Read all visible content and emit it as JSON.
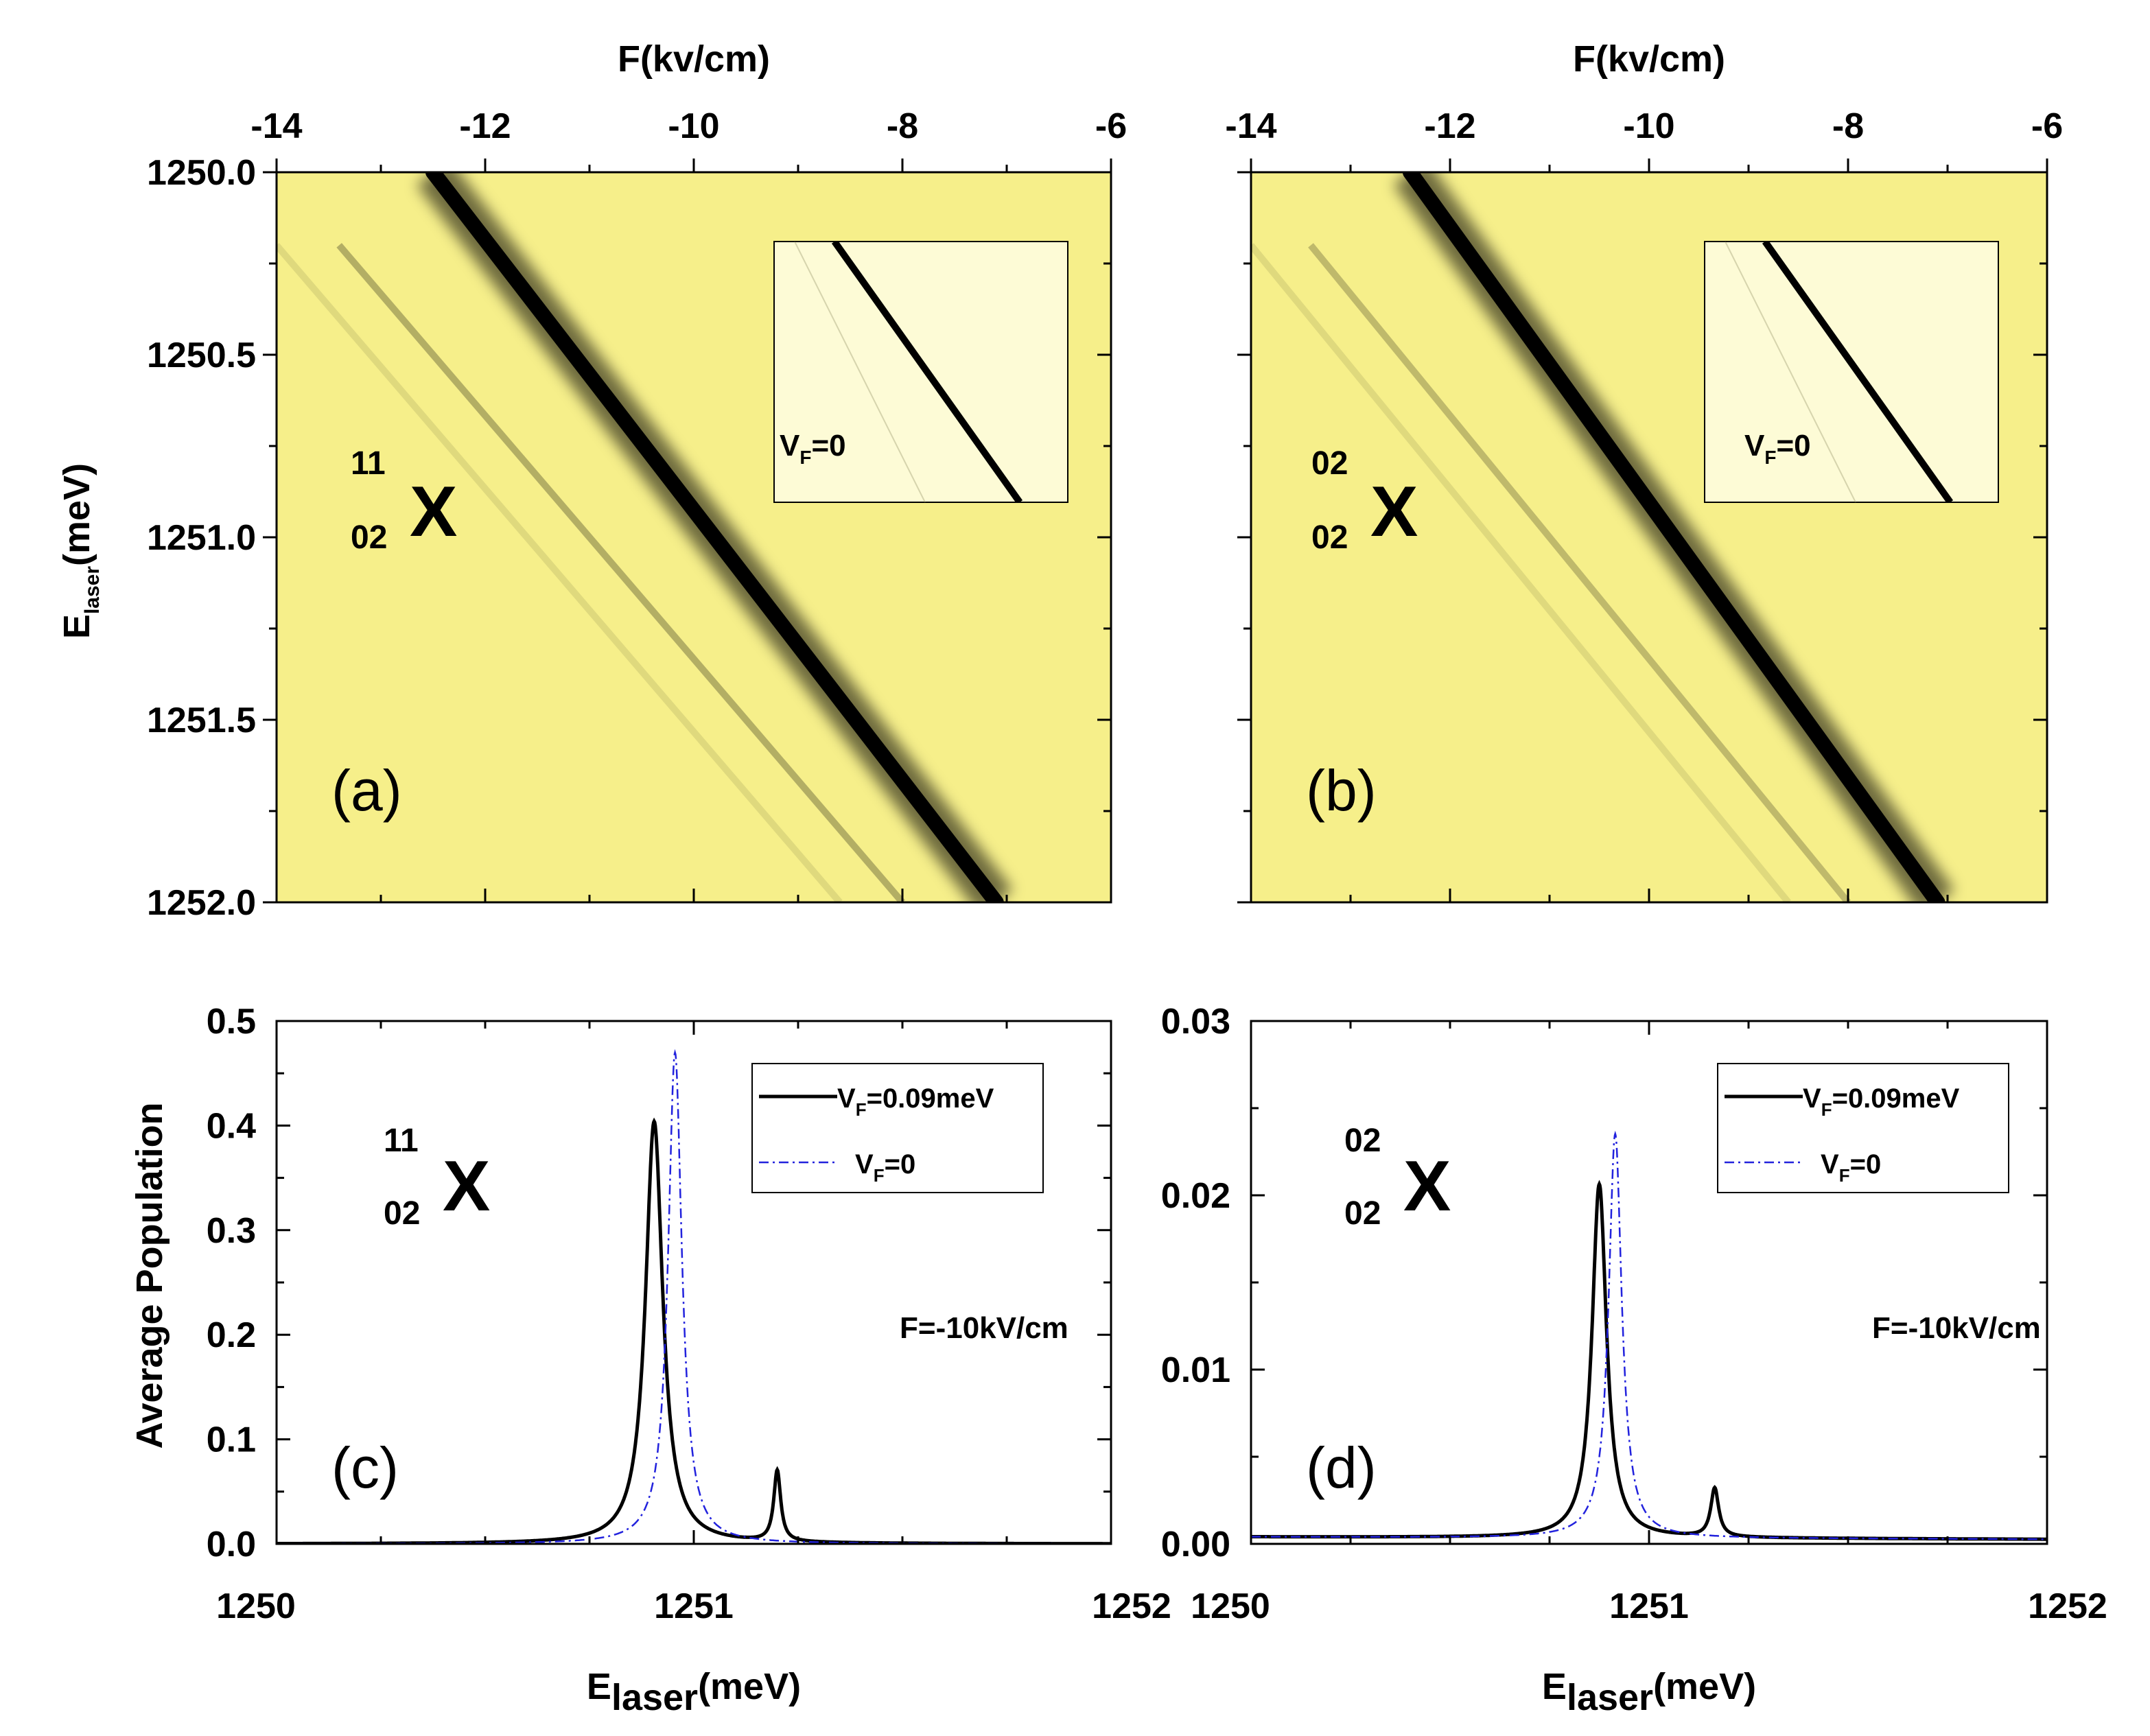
{
  "colors": {
    "map_background": "#f6ef8a",
    "map_resonance": "#000000",
    "inset_background": "#fdfbd6",
    "curve_driven": "#000000",
    "curve_undriven": "#2222dd"
  },
  "chart_data": [
    {
      "panel": "(a)",
      "type": "heatmap",
      "species": {
        "base": "X",
        "superscript": "11",
        "subscript": "02"
      },
      "x_axis": {
        "title": "F(kv/cm)",
        "position": "top",
        "range": [
          -14,
          -6
        ],
        "ticks": [
          "-14",
          "-12",
          "-10",
          "-8",
          "-6"
        ]
      },
      "y_axis": {
        "title_main": "E",
        "title_sub": "laser",
        "title_tail": "(meV)",
        "range": [
          1250.0,
          1252.0
        ],
        "reversed": true,
        "ticks": [
          "1250.0",
          "1250.5",
          "1251.0",
          "1251.5",
          "1252.0"
        ]
      },
      "inset": {
        "label_main": "V",
        "label_sub": "F",
        "label_tail": "=0"
      },
      "resonance_lines": [
        {
          "name": "main",
          "points": [
            [
              -12.5,
              1250.0
            ],
            [
              -7.1,
              1252.0
            ]
          ],
          "strength": 1.0
        },
        {
          "name": "weak",
          "points": [
            [
              -13.4,
              1250.2
            ],
            [
              -8.0,
              1252.0
            ]
          ],
          "strength": 0.3
        },
        {
          "name": "faint",
          "points": [
            [
              -14.0,
              1250.2
            ],
            [
              -8.6,
              1252.0
            ]
          ],
          "strength": 0.1
        }
      ]
    },
    {
      "panel": "(b)",
      "type": "heatmap",
      "species": {
        "base": "X",
        "superscript": "02",
        "subscript": "02"
      },
      "x_axis": {
        "title": "F(kv/cm)",
        "position": "top",
        "range": [
          -14,
          -6
        ],
        "ticks": [
          "-14",
          "-12",
          "-10",
          "-8",
          "-6"
        ]
      },
      "y_axis": {
        "range": [
          1250.0,
          1252.0
        ],
        "reversed": true
      },
      "inset": {
        "label_main": "V",
        "label_sub": "F",
        "label_tail": "=0"
      },
      "resonance_lines": [
        {
          "name": "main",
          "points": [
            [
              -12.4,
              1250.0
            ],
            [
              -7.1,
              1252.0
            ]
          ],
          "strength": 1.0
        },
        {
          "name": "weak",
          "points": [
            [
              -13.4,
              1250.2
            ],
            [
              -8.0,
              1252.0
            ]
          ],
          "strength": 0.25
        },
        {
          "name": "faint",
          "points": [
            [
              -14.0,
              1250.2
            ],
            [
              -8.6,
              1252.0
            ]
          ],
          "strength": 0.1
        }
      ]
    },
    {
      "panel": "(c)",
      "type": "line",
      "species": {
        "base": "X",
        "superscript": "11",
        "subscript": "02"
      },
      "annotation": "F=-10kV/cm",
      "x_axis": {
        "title_main": "E",
        "title_sub": "laser",
        "title_tail": "(meV)",
        "range": [
          1250,
          1252
        ],
        "ticks": [
          "1250",
          "1251",
          "1252"
        ]
      },
      "y_axis": {
        "title": "Average Population",
        "range": [
          0.0,
          0.5
        ],
        "ticks": [
          "0.0",
          "0.1",
          "0.2",
          "0.3",
          "0.4",
          "0.5"
        ]
      },
      "series": [
        {
          "name": "V_F=0.09meV",
          "label_main": "V",
          "label_sub": "F",
          "label_tail": "=0.09meV",
          "style": "solid",
          "peaks": [
            {
              "x0": 1250.905,
              "gamma": 0.025,
              "height": 0.404
            },
            {
              "x0": 1251.2,
              "gamma": 0.01,
              "height": 0.068
            }
          ]
        },
        {
          "name": "V_F=0",
          "label_main": "V",
          "label_sub": "F",
          "label_tail": "=0",
          "style": "dashdot",
          "peaks": [
            {
              "x0": 1250.955,
              "gamma": 0.02,
              "height": 0.47
            }
          ]
        }
      ]
    },
    {
      "panel": "(d)",
      "type": "line",
      "species": {
        "base": "X",
        "superscript": "02",
        "subscript": "02"
      },
      "annotation": "F=-10kV/cm",
      "x_axis": {
        "title_main": "E",
        "title_sub": "laser",
        "title_tail": "(meV)",
        "range": [
          1250,
          1252
        ],
        "ticks": [
          "1250",
          "1251",
          "1252"
        ]
      },
      "y_axis": {
        "range": [
          0.0,
          0.03
        ],
        "ticks": [
          "0.00",
          "0.01",
          "0.02",
          "0.03"
        ]
      },
      "series": [
        {
          "name": "V_F=0.09meV",
          "label_main": "V",
          "label_sub": "F",
          "label_tail": "=0.09meV",
          "style": "solid",
          "baseline": 0.0004,
          "peaks": [
            {
              "x0": 1250.875,
              "gamma": 0.022,
              "height": 0.0203
            },
            {
              "x0": 1251.165,
              "gamma": 0.012,
              "height": 0.0028
            }
          ]
        },
        {
          "name": "V_F=0",
          "label_main": "V",
          "label_sub": "F",
          "label_tail": "=0",
          "style": "dashdot",
          "baseline": 0.0004,
          "peaks": [
            {
              "x0": 1250.915,
              "gamma": 0.02,
              "height": 0.0232
            }
          ]
        }
      ]
    }
  ]
}
